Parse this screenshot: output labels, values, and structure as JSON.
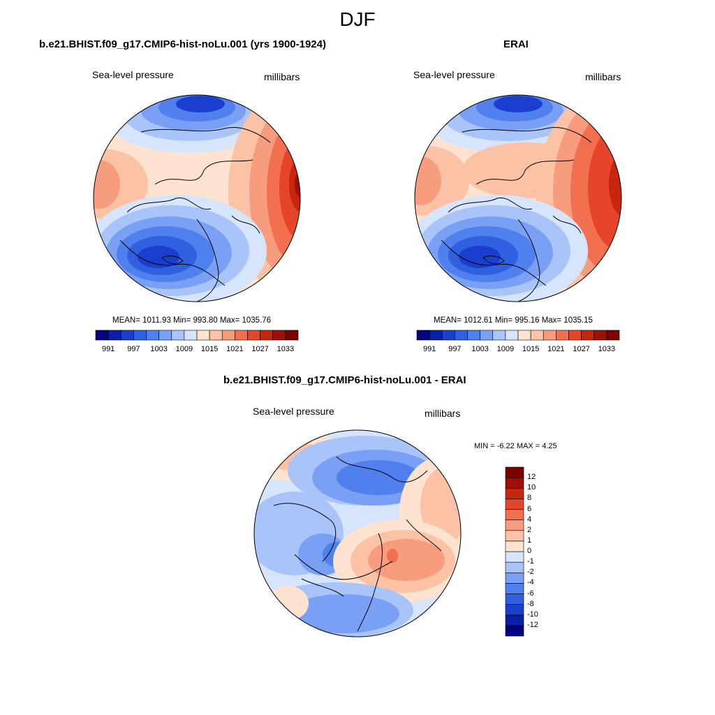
{
  "figure": {
    "title": "DJF"
  },
  "panels": {
    "model": {
      "title": "b.e21.BHIST.f09_g17.CMIP6-hist-noLu.001 (yrs 1900-1924)",
      "left_label": "Sea-level pressure",
      "right_label": "millibars",
      "stats": "MEAN= 1011.93  Min= 993.80  Max= 1035.76"
    },
    "erai": {
      "title": "ERAI",
      "left_label": "Sea-level pressure",
      "right_label": "millibars",
      "stats": "MEAN= 1012.61  Min= 995.16  Max= 1035.15"
    },
    "diff": {
      "title": "b.e21.BHIST.f09_g17.CMIP6-hist-noLu.001 - ERAI",
      "left_label": "Sea-level pressure",
      "right_label": "millibars",
      "stats": "MIN =  -6.22 MAX =   4.25"
    }
  },
  "colorbars": {
    "abs": {
      "colors": [
        "#00007f",
        "#0a1ea6",
        "#1a3fcf",
        "#3060e0",
        "#4f80ee",
        "#7aa0f5",
        "#a9c4f8",
        "#d6e5fb",
        "#fde3d0",
        "#fbc2a6",
        "#f79c7c",
        "#f2704f",
        "#e6452a",
        "#c9260f",
        "#9d1006",
        "#7a0000"
      ],
      "labels": [
        "991",
        "997",
        "1003",
        "1009",
        "1015",
        "1021",
        "1027",
        "1033"
      ]
    },
    "diff": {
      "colors": [
        "#00007f",
        "#0a1ea6",
        "#1a3fcf",
        "#3060e0",
        "#4f80ee",
        "#7aa0f5",
        "#a9c4f8",
        "#d6e5fb",
        "#fde3d0",
        "#fbc2a6",
        "#f79c7c",
        "#f2704f",
        "#e6452a",
        "#c9260f",
        "#9d1006",
        "#7a0000"
      ],
      "labels": [
        "-12",
        "-10",
        "-8",
        "-6",
        "-4",
        "-2",
        "-1",
        "0",
        "1",
        "2",
        "4",
        "6",
        "8",
        "10",
        "12"
      ]
    }
  },
  "map_colors": {
    "deep_blue": "#1a3fcf",
    "blue": "#3060e0",
    "mid_blue": "#4f80ee",
    "light_blue": "#7aa0f5",
    "pale_blue": "#a9c4f8",
    "paler_blue": "#d6e5fb",
    "pale_red": "#fde3d0",
    "light_red": "#fbc2a6",
    "salmon": "#f79c7c",
    "orange_red": "#f2704f",
    "red": "#e6452a",
    "dark_red": "#c9260f",
    "darkest_red": "#9d1006"
  }
}
